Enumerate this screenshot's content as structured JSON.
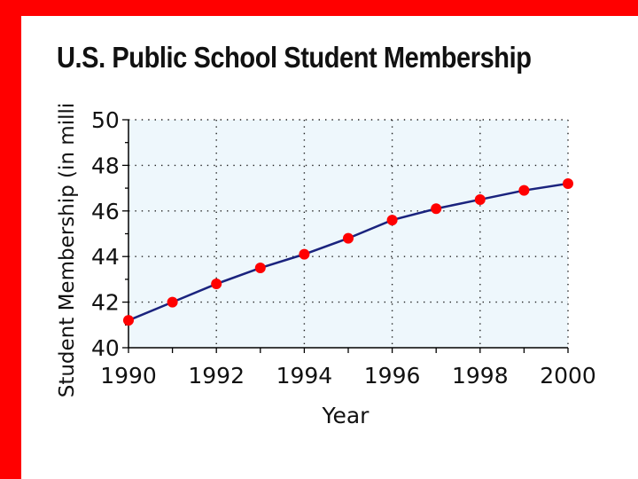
{
  "chart_data": {
    "type": "line",
    "title": "U.S. Public School Student Membership",
    "xlabel": "Year",
    "ylabel": "Student Membership (in milli",
    "x": [
      1990,
      1991,
      1992,
      1993,
      1994,
      1995,
      1996,
      1997,
      1998,
      1999,
      2000
    ],
    "series": [
      {
        "values": [
          41.2,
          42.0,
          42.8,
          43.5,
          44.1,
          44.8,
          45.6,
          46.1,
          46.5,
          46.9,
          47.2
        ]
      }
    ],
    "xlim": [
      1990,
      2000
    ],
    "ylim": [
      40,
      50
    ],
    "x_ticks": [
      "1990",
      "1992",
      "1994",
      "1996",
      "1998",
      "2000"
    ],
    "y_ticks": [
      "40",
      "42",
      "44",
      "46",
      "48",
      "50"
    ],
    "grid": true,
    "colors": {
      "frame": "#ff0000",
      "plot_background": "#eef7fc",
      "line": "#1a237e",
      "marker": "#ff0000"
    }
  }
}
